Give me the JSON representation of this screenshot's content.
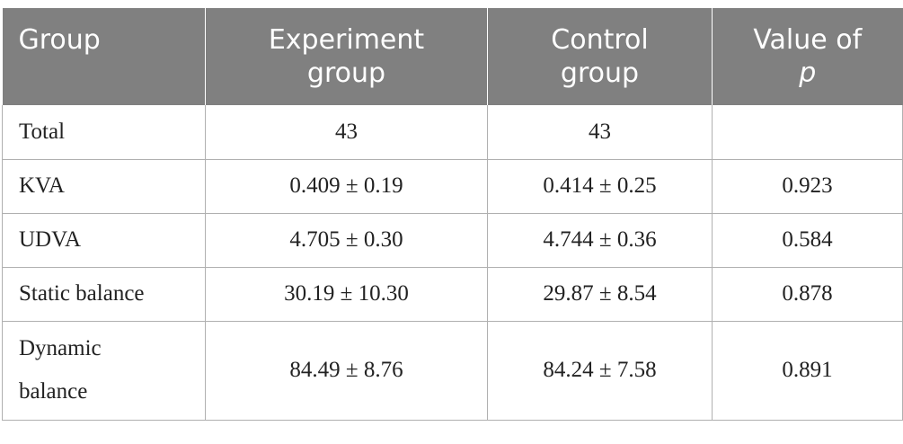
{
  "table": {
    "headers": {
      "group": "Group",
      "experiment_line1": "Experiment",
      "experiment_line2": "group",
      "control_line1": "Control",
      "control_line2": "group",
      "pvalue_line1": "Value of",
      "pvalue_line2": "p"
    },
    "rows": [
      {
        "label": "Total",
        "experiment": "43",
        "control": "43",
        "p": ""
      },
      {
        "label": "KVA",
        "experiment": "0.409 ± 0.19",
        "control": "0.414 ± 0.25",
        "p": "0.923"
      },
      {
        "label": "UDVA",
        "experiment": "4.705 ± 0.30",
        "control": "4.744 ± 0.36",
        "p": "0.584"
      },
      {
        "label": "Static balance",
        "experiment": "30.19 ± 10.30",
        "control": "29.87 ± 8.54",
        "p": "0.878"
      },
      {
        "label_line1": "Dynamic",
        "label_line2": "balance",
        "experiment": "84.49 ± 8.76",
        "control": "84.24 ± 7.58",
        "p": "0.891"
      }
    ]
  },
  "colors": {
    "header_bg": "#808080",
    "header_text": "#ffffff",
    "grid": "#b0b0b0"
  }
}
